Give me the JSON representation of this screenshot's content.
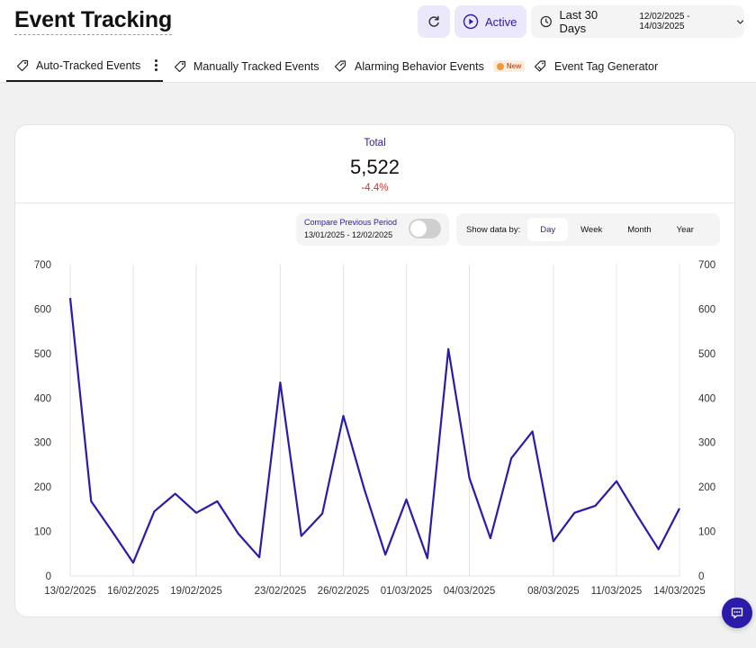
{
  "header": {
    "title": "Event Tracking",
    "status_label": "Active",
    "range_label": "Last 30 Days",
    "range_dates": "12/02/2025 - 14/03/2025"
  },
  "tabs": [
    {
      "label": "Auto-Tracked Events",
      "active": true
    },
    {
      "label": "Manually Tracked Events",
      "active": false
    },
    {
      "label": "Alarming Behavior Events",
      "active": false,
      "badge": "New"
    },
    {
      "label": "Event Tag Generator",
      "active": false
    }
  ],
  "summary": {
    "label": "Total",
    "value": "5,522",
    "change": "-4.4%"
  },
  "compare": {
    "title": "Compare Previous Period",
    "dates": "13/01/2025 - 12/02/2025",
    "enabled": false
  },
  "granularity": {
    "label": "Show data by:",
    "options": [
      "Day",
      "Week",
      "Month",
      "Year"
    ],
    "selected": "Day"
  },
  "colors": {
    "accent": "#2a1ba8",
    "negative": "#d6342b",
    "line": "#2a1ba8"
  },
  "chart_data": {
    "type": "line",
    "ylim": [
      0,
      700
    ],
    "yticks": [
      0,
      100,
      200,
      300,
      400,
      500,
      600,
      700
    ],
    "x_tick_labels": [
      "13/02/2025",
      "16/02/2025",
      "19/02/2025",
      "23/02/2025",
      "26/02/2025",
      "01/03/2025",
      "04/03/2025",
      "08/03/2025",
      "11/03/2025",
      "14/03/2025"
    ],
    "x_tick_indices": [
      0,
      3,
      6,
      10,
      13,
      16,
      19,
      23,
      26,
      29
    ],
    "grid": "vertical",
    "series": [
      {
        "values": [
          625,
          168,
          100,
          30,
          145,
          185,
          142,
          168,
          95,
          42,
          435,
          90,
          140,
          360,
          195,
          48,
          172,
          40,
          510,
          220,
          85,
          265,
          325,
          78,
          142,
          158,
          213,
          135,
          60,
          152
        ]
      }
    ]
  }
}
